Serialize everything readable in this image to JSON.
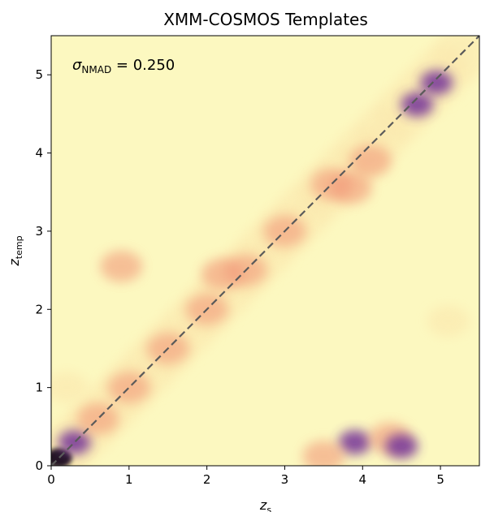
{
  "chart_data": {
    "type": "heatmap",
    "title": "XMM-COSMOS Templates",
    "xlabel": {
      "main": "z",
      "sub": "s"
    },
    "ylabel": {
      "main": "z",
      "sub": "temp"
    },
    "xlim": [
      0,
      5.5
    ],
    "ylim": [
      0,
      5.5
    ],
    "xticks": [
      "0",
      "1",
      "2",
      "3",
      "4",
      "5"
    ],
    "yticks": [
      "0",
      "1",
      "2",
      "3",
      "4",
      "5"
    ],
    "annotation": {
      "symbol": "σ",
      "sub": "NMAD",
      "rest": " = 0.250"
    },
    "reference_line": {
      "type": "one-to-one",
      "style": "dashed",
      "color": "#5a5a5a"
    },
    "colormap": "magma_r",
    "colors": {
      "background": "#fcf8c0",
      "low": "#fbe7ad",
      "mid": "#f29a7a",
      "high": "#7a3a9a",
      "max": "#0a0618"
    },
    "density": [
      {
        "x": 0.1,
        "y": 0.1,
        "level": 1.0
      },
      {
        "x": 0.3,
        "y": 0.3,
        "level": 0.9
      },
      {
        "x": 0.6,
        "y": 0.6,
        "level": 0.45
      },
      {
        "x": 1.0,
        "y": 1.0,
        "level": 0.4
      },
      {
        "x": 1.5,
        "y": 1.5,
        "level": 0.45
      },
      {
        "x": 2.0,
        "y": 2.0,
        "level": 0.4
      },
      {
        "x": 2.5,
        "y": 2.5,
        "level": 0.55
      },
      {
        "x": 2.2,
        "y": 2.45,
        "level": 0.45
      },
      {
        "x": 3.0,
        "y": 3.0,
        "level": 0.4
      },
      {
        "x": 3.6,
        "y": 3.6,
        "level": 0.45
      },
      {
        "x": 3.85,
        "y": 3.55,
        "level": 0.55
      },
      {
        "x": 4.1,
        "y": 3.9,
        "level": 0.45
      },
      {
        "x": 4.7,
        "y": 4.62,
        "level": 0.85
      },
      {
        "x": 4.95,
        "y": 4.9,
        "level": 0.6
      },
      {
        "x": 0.9,
        "y": 2.55,
        "level": 0.35
      },
      {
        "x": 3.9,
        "y": 0.3,
        "level": 0.6
      },
      {
        "x": 4.35,
        "y": 0.35,
        "level": 0.55
      },
      {
        "x": 4.5,
        "y": 0.25,
        "level": 0.7
      },
      {
        "x": 3.5,
        "y": 0.12,
        "level": 0.35
      },
      {
        "x": 0.2,
        "y": 1.0,
        "level": 0.3
      },
      {
        "x": 5.1,
        "y": 1.85,
        "level": 0.2
      }
    ]
  }
}
